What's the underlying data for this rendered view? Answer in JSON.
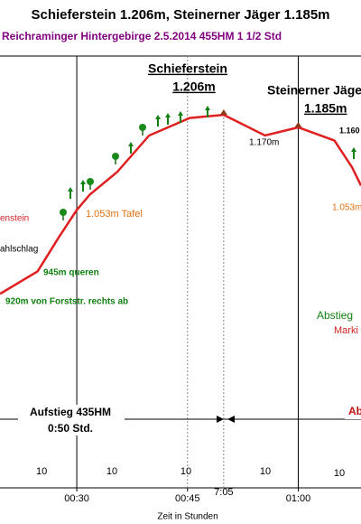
{
  "chart_data": {
    "type": "line",
    "title": "Schieferstein 1.206m, Steinerner Jäger 1.185m",
    "subtitle": "Reichraminger Hintergebirge  2.5.2014  455HM    1 1/2 Std",
    "xlabel": "Zeit in Stunden",
    "x": [
      19.6,
      24.7,
      27.6,
      30,
      31.8,
      35.5,
      39.8,
      45.3,
      49.9,
      55.5,
      60,
      64.9,
      67.3,
      68.5
    ],
    "values": [
      920,
      956,
      1011,
      1054,
      1079,
      1115,
      1173,
      1201,
      1206,
      1173,
      1186,
      1165,
      1122,
      1093
    ],
    "color": "#e02020",
    "xlim": [
      19.6,
      68.5
    ],
    "ylim": [
      610,
      1300
    ],
    "xticks": [
      {
        "value": 30,
        "label": "00:30"
      },
      {
        "value": 45,
        "label": "00:45"
      },
      {
        "value": 60,
        "label": "01:00"
      }
    ],
    "summit_time": {
      "value": 49.9,
      "label": "7:05"
    },
    "peaks": {
      "schieferstein": [
        "Schieferstein",
        "1.206m"
      ],
      "jaeger": [
        "Steinerner Jäger",
        "1.185m"
      ]
    },
    "annotations": {
      "saddle": "1.170m",
      "right_top": "1.160",
      "tafel": "1.053m Tafel",
      "stein": "enstein",
      "right_1053": "1.053m",
      "schlag": "ahlschlag",
      "queren": "945m queren",
      "forst": "920m von Forststr. rechts ab",
      "abstieg": "Abstieg",
      "marki": "Marki",
      "aufstieg": "Aufstieg 435HM",
      "aufstieg_time": "0:50 Std.",
      "ab": "Ab"
    },
    "segment_labels": [
      "10",
      "10",
      "10",
      "10",
      "10"
    ]
  }
}
